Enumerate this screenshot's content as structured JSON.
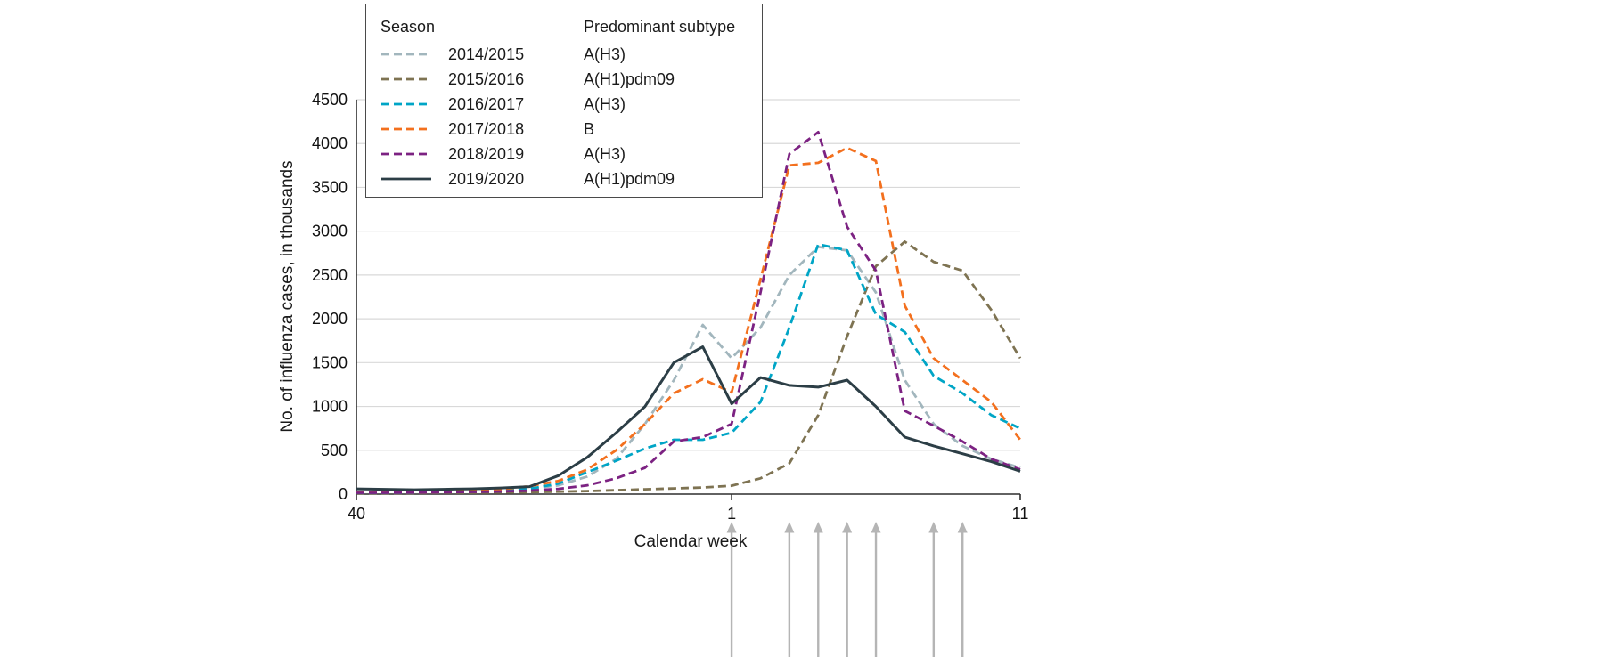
{
  "chart_data": {
    "type": "line",
    "title": "",
    "xlabel": "Calendar week",
    "ylabel": "No. of influenza cases, in thousands",
    "ylim": [
      0,
      4500
    ],
    "yticks": [
      0,
      500,
      1000,
      1500,
      2000,
      2500,
      3000,
      3500,
      4000,
      4500
    ],
    "x_weeks": [
      40,
      41,
      42,
      43,
      44,
      45,
      46,
      47,
      48,
      49,
      50,
      51,
      52,
      1,
      2,
      3,
      4,
      5,
      6,
      7,
      8,
      9,
      10,
      11
    ],
    "xticks": [
      {
        "week": 40,
        "label": "40"
      },
      {
        "week": 1,
        "label": "1"
      },
      {
        "week": 11,
        "label": "11"
      }
    ],
    "grid_on": true,
    "grid_color": "#d9d9d9",
    "axis_color": "#2e2e2e",
    "legend": {
      "position": "top-left",
      "season_header": "Season",
      "subtype_header": "Predominant subtype"
    },
    "series": [
      {
        "season": "2014/2015",
        "subtype": "A(H3)",
        "color": "#a2b6bd",
        "dashed": true,
        "values": [
          20,
          20,
          25,
          30,
          35,
          45,
          60,
          100,
          200,
          400,
          800,
          1300,
          1930,
          1550,
          1900,
          2500,
          2820,
          2780,
          2300,
          1300,
          800,
          550,
          400,
          300
        ]
      },
      {
        "season": "2015/2016",
        "subtype": "A(H1)pdm09",
        "color": "#7e7352",
        "dashed": true,
        "values": [
          10,
          10,
          12,
          15,
          15,
          18,
          22,
          28,
          35,
          45,
          55,
          65,
          75,
          95,
          180,
          350,
          900,
          1800,
          2600,
          2880,
          2650,
          2550,
          2100,
          1550
        ]
      },
      {
        "season": "2016/2017",
        "subtype": "A(H3)",
        "color": "#00a5c6",
        "dashed": true,
        "values": [
          15,
          15,
          18,
          22,
          28,
          38,
          60,
          120,
          250,
          380,
          520,
          620,
          620,
          700,
          1050,
          1900,
          2850,
          2780,
          2050,
          1850,
          1350,
          1150,
          900,
          750
        ]
      },
      {
        "season": "2017/2018",
        "subtype": "B",
        "color": "#f3701e",
        "dashed": true,
        "values": [
          20,
          25,
          28,
          32,
          40,
          55,
          90,
          150,
          280,
          500,
          800,
          1150,
          1310,
          1160,
          2450,
          3750,
          3780,
          3950,
          3800,
          2150,
          1550,
          1300,
          1050,
          620
        ]
      },
      {
        "season": "2018/2019",
        "subtype": "A(H3)",
        "color": "#7c2282",
        "dashed": true,
        "values": [
          15,
          15,
          18,
          20,
          25,
          30,
          40,
          60,
          100,
          180,
          300,
          600,
          650,
          800,
          2300,
          3880,
          4130,
          3050,
          2550,
          950,
          780,
          600,
          400,
          280
        ]
      },
      {
        "season": "2019/2020",
        "subtype": "A(H1)pdm09",
        "color": "#2c3e46",
        "dashed": false,
        "values": [
          60,
          55,
          50,
          55,
          60,
          70,
          85,
          210,
          420,
          700,
          1000,
          1500,
          1680,
          1030,
          1330,
          1240,
          1220,
          1300,
          1000,
          650,
          550,
          460,
          370,
          260
        ]
      }
    ],
    "arrows": {
      "weeks": [
        1,
        3,
        4,
        5,
        6,
        8,
        9
      ],
      "color": "#b5b5b5"
    }
  }
}
